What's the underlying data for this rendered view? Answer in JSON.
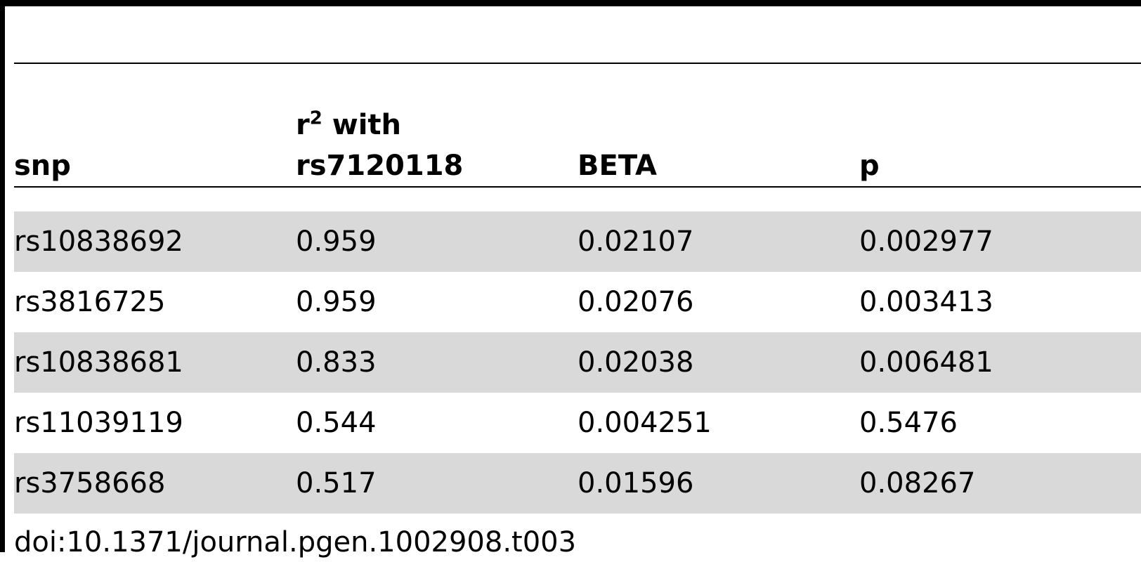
{
  "table": {
    "headers": {
      "snp": "snp",
      "r2_base": "r",
      "r2_sup": "2",
      "r2_with": " with",
      "r2_ref": "rs7120118",
      "beta": "BETA",
      "p": "p"
    },
    "rows": [
      {
        "snp": "rs10838692",
        "r2": "0.959",
        "beta": "0.02107",
        "p": "0.002977"
      },
      {
        "snp": "rs3816725",
        "r2": "0.959",
        "beta": "0.02076",
        "p": "0.003413"
      },
      {
        "snp": "rs10838681",
        "r2": "0.833",
        "beta": "0.02038",
        "p": "0.006481"
      },
      {
        "snp": "rs11039119",
        "r2": "0.544",
        "beta": "0.004251",
        "p": "0.5476"
      },
      {
        "snp": "rs3758668",
        "r2": "0.517",
        "beta": "0.01596",
        "p": "0.08267"
      }
    ],
    "shade_color": "#d9d9d9"
  },
  "footer": {
    "doi": "doi:10.1371/journal.pgen.1002908.t003"
  }
}
